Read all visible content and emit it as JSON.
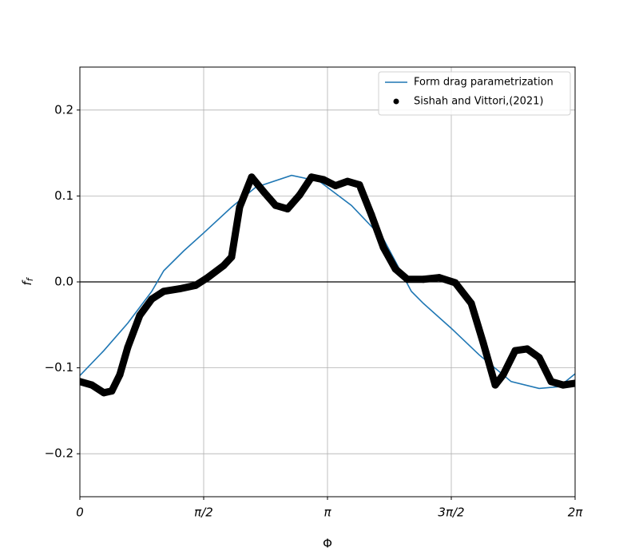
{
  "chart_data": {
    "type": "line_scatter",
    "x_label": "Φ",
    "y_label": "f_f",
    "xlim": [
      0,
      6.283185
    ],
    "ylim": [
      -0.25,
      0.25
    ],
    "xticks": [
      {
        "value": 0,
        "label": "0"
      },
      {
        "value": 1.570796,
        "label": "π/2"
      },
      {
        "value": 3.141593,
        "label": "π"
      },
      {
        "value": 4.712389,
        "label": "3π/2"
      },
      {
        "value": 6.283185,
        "label": "2π"
      }
    ],
    "yticks": [
      {
        "value": -0.2,
        "label": "−0.2"
      },
      {
        "value": -0.1,
        "label": "−0.1"
      },
      {
        "value": 0,
        "label": "0.0"
      },
      0.1,
      0.2
    ],
    "grid": true,
    "hline": 0,
    "legend": "upper right",
    "series": [
      {
        "name": "Form drag parametrization",
        "kind": "line",
        "color": "#1f77b4",
        "x": [
          0,
          0.304,
          0.608,
          0.912,
          1.064,
          1.317,
          1.571,
          1.925,
          2.229,
          2.686,
          3.04,
          3.445,
          3.851,
          4.206,
          4.358,
          4.712,
          5.067,
          5.472,
          5.827,
          6.08,
          6.283
        ],
        "values": [
          -0.109,
          -0.08,
          -0.048,
          -0.011,
          0.013,
          0.036,
          0.057,
          0.087,
          0.11,
          0.124,
          0.117,
          0.089,
          0.05,
          -0.011,
          -0.025,
          -0.054,
          -0.085,
          -0.116,
          -0.124,
          -0.122,
          -0.107
        ]
      },
      {
        "name": "Sishah and Vittori,(2021)",
        "kind": "scatter",
        "color": "#000000",
        "x": [
          0,
          0.152,
          0.304,
          0.405,
          0.507,
          0.608,
          0.76,
          0.912,
          1.064,
          1.267,
          1.469,
          1.621,
          1.824,
          1.925,
          2.027,
          2.179,
          2.331,
          2.483,
          2.635,
          2.787,
          2.939,
          3.091,
          3.243,
          3.395,
          3.547,
          3.699,
          3.851,
          4.003,
          4.155,
          4.358,
          4.56,
          4.763,
          4.966,
          5.118,
          5.27,
          5.371,
          5.523,
          5.675,
          5.827,
          5.979,
          6.131,
          6.283
        ],
        "values": [
          -0.116,
          -0.12,
          -0.129,
          -0.127,
          -0.108,
          -0.076,
          -0.039,
          -0.02,
          -0.011,
          -0.008,
          -0.004,
          0.005,
          0.019,
          0.029,
          0.087,
          0.122,
          0.105,
          0.089,
          0.085,
          0.101,
          0.122,
          0.119,
          0.112,
          0.117,
          0.113,
          0.078,
          0.04,
          0.015,
          0.003,
          0.003,
          0.005,
          -0.001,
          -0.025,
          -0.071,
          -0.12,
          -0.108,
          -0.08,
          -0.078,
          -0.088,
          -0.116,
          -0.12,
          -0.118
        ]
      }
    ]
  }
}
